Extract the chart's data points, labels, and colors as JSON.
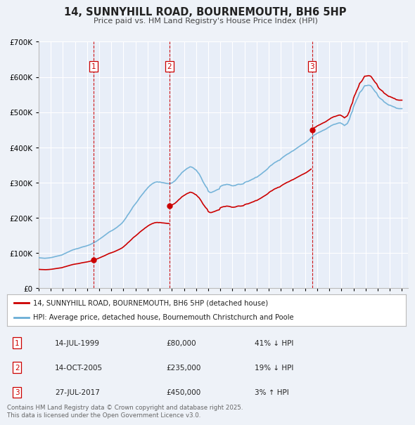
{
  "title": "14, SUNNYHILL ROAD, BOURNEMOUTH, BH6 5HP",
  "subtitle": "Price paid vs. HM Land Registry's House Price Index (HPI)",
  "bg_color": "#eef2f8",
  "plot_bg_color": "#e8eef8",
  "grid_color": "#ffffff",
  "hpi_color": "#6aaed6",
  "price_color": "#cc0000",
  "marker_color": "#cc0000",
  "vline_color": "#cc0000",
  "ylim": [
    0,
    700000
  ],
  "ytick_step": 100000,
  "xmin": 1995.0,
  "xmax": 2025.5,
  "transactions": [
    {
      "num": 1,
      "date_str": "14-JUL-1999",
      "year": 1999.54,
      "price": 80000,
      "pct": "41%",
      "dir": "↓"
    },
    {
      "num": 2,
      "date_str": "14-OCT-2005",
      "year": 2005.79,
      "price": 235000,
      "pct": "19%",
      "dir": "↓"
    },
    {
      "num": 3,
      "date_str": "27-JUL-2017",
      "year": 2017.57,
      "price": 450000,
      "pct": "3%",
      "dir": "↑"
    }
  ],
  "legend_label_price": "14, SUNNYHILL ROAD, BOURNEMOUTH, BH6 5HP (detached house)",
  "legend_label_hpi": "HPI: Average price, detached house, Bournemouth Christchurch and Poole",
  "footer": "Contains HM Land Registry data © Crown copyright and database right 2025.\nThis data is licensed under the Open Government Licence v3.0.",
  "hpi_data": {
    "years": [
      1995.0,
      1995.08,
      1995.17,
      1995.25,
      1995.33,
      1995.42,
      1995.5,
      1995.58,
      1995.67,
      1995.75,
      1995.83,
      1995.92,
      1996.0,
      1996.08,
      1996.17,
      1996.25,
      1996.33,
      1996.42,
      1996.5,
      1996.58,
      1996.67,
      1996.75,
      1996.83,
      1996.92,
      1997.0,
      1997.08,
      1997.17,
      1997.25,
      1997.33,
      1997.42,
      1997.5,
      1997.58,
      1997.67,
      1997.75,
      1997.83,
      1997.92,
      1998.0,
      1998.08,
      1998.17,
      1998.25,
      1998.33,
      1998.42,
      1998.5,
      1998.58,
      1998.67,
      1998.75,
      1998.83,
      1998.92,
      1999.0,
      1999.08,
      1999.17,
      1999.25,
      1999.33,
      1999.42,
      1999.5,
      1999.58,
      1999.67,
      1999.75,
      1999.83,
      1999.92,
      2000.0,
      2000.08,
      2000.17,
      2000.25,
      2000.33,
      2000.42,
      2000.5,
      2000.58,
      2000.67,
      2000.75,
      2000.83,
      2000.92,
      2001.0,
      2001.08,
      2001.17,
      2001.25,
      2001.33,
      2001.42,
      2001.5,
      2001.58,
      2001.67,
      2001.75,
      2001.83,
      2001.92,
      2002.0,
      2002.08,
      2002.17,
      2002.25,
      2002.33,
      2002.42,
      2002.5,
      2002.58,
      2002.67,
      2002.75,
      2002.83,
      2002.92,
      2003.0,
      2003.08,
      2003.17,
      2003.25,
      2003.33,
      2003.42,
      2003.5,
      2003.58,
      2003.67,
      2003.75,
      2003.83,
      2003.92,
      2004.0,
      2004.08,
      2004.17,
      2004.25,
      2004.33,
      2004.42,
      2004.5,
      2004.58,
      2004.67,
      2004.75,
      2004.83,
      2004.92,
      2005.0,
      2005.08,
      2005.17,
      2005.25,
      2005.33,
      2005.42,
      2005.5,
      2005.58,
      2005.67,
      2005.75,
      2005.83,
      2005.92,
      2006.0,
      2006.08,
      2006.17,
      2006.25,
      2006.33,
      2006.42,
      2006.5,
      2006.58,
      2006.67,
      2006.75,
      2006.83,
      2006.92,
      2007.0,
      2007.08,
      2007.17,
      2007.25,
      2007.33,
      2007.42,
      2007.5,
      2007.58,
      2007.67,
      2007.75,
      2007.83,
      2007.92,
      2008.0,
      2008.08,
      2008.17,
      2008.25,
      2008.33,
      2008.42,
      2008.5,
      2008.58,
      2008.67,
      2008.75,
      2008.83,
      2008.92,
      2009.0,
      2009.08,
      2009.17,
      2009.25,
      2009.33,
      2009.42,
      2009.5,
      2009.58,
      2009.67,
      2009.75,
      2009.83,
      2009.92,
      2010.0,
      2010.08,
      2010.17,
      2010.25,
      2010.33,
      2010.42,
      2010.5,
      2010.58,
      2010.67,
      2010.75,
      2010.83,
      2010.92,
      2011.0,
      2011.08,
      2011.17,
      2011.25,
      2011.33,
      2011.42,
      2011.5,
      2011.58,
      2011.67,
      2011.75,
      2011.83,
      2011.92,
      2012.0,
      2012.08,
      2012.17,
      2012.25,
      2012.33,
      2012.42,
      2012.5,
      2012.58,
      2012.67,
      2012.75,
      2012.83,
      2012.92,
      2013.0,
      2013.08,
      2013.17,
      2013.25,
      2013.33,
      2013.42,
      2013.5,
      2013.58,
      2013.67,
      2013.75,
      2013.83,
      2013.92,
      2014.0,
      2014.08,
      2014.17,
      2014.25,
      2014.33,
      2014.42,
      2014.5,
      2014.58,
      2014.67,
      2014.75,
      2014.83,
      2014.92,
      2015.0,
      2015.08,
      2015.17,
      2015.25,
      2015.33,
      2015.42,
      2015.5,
      2015.58,
      2015.67,
      2015.75,
      2015.83,
      2015.92,
      2016.0,
      2016.08,
      2016.17,
      2016.25,
      2016.33,
      2016.42,
      2016.5,
      2016.58,
      2016.67,
      2016.75,
      2016.83,
      2016.92,
      2017.0,
      2017.08,
      2017.17,
      2017.25,
      2017.33,
      2017.42,
      2017.5,
      2017.58,
      2017.67,
      2017.75,
      2017.83,
      2017.92,
      2018.0,
      2018.08,
      2018.17,
      2018.25,
      2018.33,
      2018.42,
      2018.5,
      2018.58,
      2018.67,
      2018.75,
      2018.83,
      2018.92,
      2019.0,
      2019.08,
      2019.17,
      2019.25,
      2019.33,
      2019.42,
      2019.5,
      2019.58,
      2019.67,
      2019.75,
      2019.83,
      2019.92,
      2020.0,
      2020.08,
      2020.17,
      2020.25,
      2020.33,
      2020.42,
      2020.5,
      2020.58,
      2020.67,
      2020.75,
      2020.83,
      2020.92,
      2021.0,
      2021.08,
      2021.17,
      2021.25,
      2021.33,
      2021.42,
      2021.5,
      2021.58,
      2021.67,
      2021.75,
      2021.83,
      2021.92,
      2022.0,
      2022.08,
      2022.17,
      2022.25,
      2022.33,
      2022.42,
      2022.5,
      2022.58,
      2022.67,
      2022.75,
      2022.83,
      2022.92,
      2023.0,
      2023.08,
      2023.17,
      2023.25,
      2023.33,
      2023.42,
      2023.5,
      2023.58,
      2023.67,
      2023.75,
      2023.83,
      2023.92,
      2024.0,
      2024.08,
      2024.17,
      2024.25,
      2024.33,
      2024.42,
      2024.5,
      2024.58,
      2024.67,
      2024.75,
      2024.83,
      2024.92,
      2025.0
    ],
    "values": [
      87000,
      86500,
      86200,
      86000,
      85800,
      85500,
      85200,
      85400,
      85600,
      85800,
      86200,
      86600,
      87000,
      87500,
      88200,
      89000,
      89800,
      90500,
      91200,
      91800,
      92400,
      93200,
      93800,
      94500,
      96000,
      97500,
      98800,
      100000,
      101500,
      102800,
      104000,
      105500,
      106800,
      108000,
      109200,
      110000,
      111000,
      111800,
      112500,
      113000,
      114000,
      115000,
      116000,
      117000,
      117800,
      118500,
      119000,
      120000,
      121000,
      122000,
      123000,
      124000,
      125500,
      127000,
      128500,
      130000,
      131500,
      133000,
      135000,
      137000,
      139000,
      141000,
      143000,
      145000,
      147000,
      149000,
      151000,
      153500,
      155800,
      158000,
      160000,
      161500,
      163000,
      164500,
      166200,
      168000,
      170000,
      172000,
      174000,
      176500,
      178800,
      181000,
      183500,
      186500,
      190000,
      194000,
      198000,
      202000,
      207000,
      211000,
      215000,
      219500,
      224000,
      229000,
      233000,
      237000,
      240000,
      244000,
      248000,
      252000,
      256500,
      260500,
      264000,
      267500,
      271000,
      275000,
      278000,
      281500,
      285000,
      288000,
      291000,
      293000,
      295500,
      297500,
      299000,
      300500,
      301200,
      302000,
      302000,
      301000,
      302000,
      301000,
      300200,
      300000,
      299500,
      298800,
      298200,
      297500,
      297200,
      297000,
      297500,
      298000,
      299000,
      301000,
      303000,
      305000,
      308000,
      311500,
      315000,
      318500,
      321500,
      325000,
      328500,
      331000,
      333000,
      335500,
      337800,
      340000,
      341500,
      343000,
      345000,
      344500,
      343500,
      342000,
      340000,
      337000,
      336000,
      332000,
      328000,
      325000,
      320000,
      314000,
      308000,
      302000,
      297000,
      292000,
      288000,
      284000,
      276000,
      273500,
      272000,
      272000,
      273000,
      274500,
      275500,
      277000,
      278500,
      280000,
      281000,
      282000,
      289000,
      290500,
      291800,
      293000,
      293500,
      293800,
      295000,
      295000,
      294500,
      294000,
      293000,
      291500,
      291000,
      291000,
      291500,
      292000,
      293500,
      294800,
      295500,
      295200,
      295000,
      295500,
      296000,
      297000,
      300000,
      301500,
      302800,
      303000,
      304000,
      305500,
      307000,
      308500,
      310000,
      311000,
      313000,
      315000,
      315000,
      317000,
      319000,
      321000,
      323000,
      325500,
      328000,
      330000,
      332000,
      334500,
      337000,
      339500,
      343000,
      346000,
      348500,
      350000,
      352500,
      355000,
      357000,
      358500,
      360000,
      362000,
      363000,
      364000,
      367000,
      369500,
      372000,
      374000,
      376000,
      378000,
      380000,
      381500,
      383000,
      385000,
      387000,
      389000,
      390000,
      392000,
      394000,
      396000,
      398000,
      400000,
      402000,
      404000,
      406000,
      408000,
      409500,
      411500,
      413000,
      415000,
      417500,
      420000,
      422500,
      425000,
      428000,
      430000,
      432000,
      435000,
      436500,
      438000,
      440000,
      441500,
      442800,
      444000,
      445500,
      447000,
      448500,
      449500,
      451000,
      452500,
      454500,
      456500,
      458000,
      460000,
      462000,
      463000,
      464500,
      465500,
      466000,
      467000,
      468000,
      469000,
      469500,
      469500,
      468000,
      466500,
      464500,
      462000,
      464000,
      466000,
      468000,
      474000,
      480000,
      490000,
      497000,
      503000,
      515000,
      522000,
      528000,
      535000,
      540000,
      547000,
      555000,
      558000,
      561000,
      565000,
      570000,
      575000,
      575000,
      575500,
      576000,
      576500,
      576000,
      575000,
      572000,
      568000,
      564000,
      560000,
      557000,
      554000,
      548000,
      543000,
      540000,
      538000,
      536000,
      534000,
      530000,
      528000,
      526000,
      524000,
      522000,
      520000,
      520000,
      518500,
      517500,
      516000,
      515000,
      514000,
      512000,
      511000,
      510500,
      510000,
      510000,
      510000,
      510000
    ]
  }
}
